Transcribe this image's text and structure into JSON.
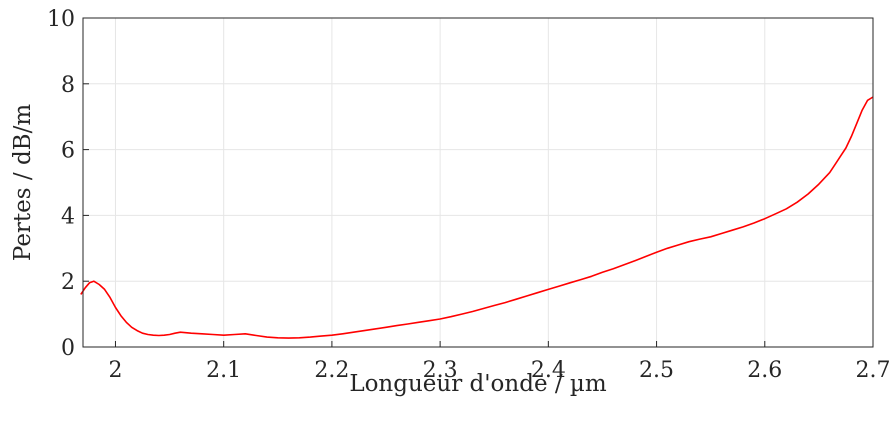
{
  "chart_data": {
    "type": "line",
    "xlabel": "Longueur d'onde / µm",
    "ylabel": "Pertes / dB/m",
    "xlim": [
      1.97,
      2.7
    ],
    "ylim": [
      0,
      10
    ],
    "xticks": [
      {
        "value": 2.0,
        "label": "2"
      },
      {
        "value": 2.1,
        "label": "2.1"
      },
      {
        "value": 2.2,
        "label": "2.2"
      },
      {
        "value": 2.3,
        "label": "2.3"
      },
      {
        "value": 2.4,
        "label": "2.4"
      },
      {
        "value": 2.5,
        "label": "2.5"
      },
      {
        "value": 2.6,
        "label": "2.6"
      },
      {
        "value": 2.7,
        "label": "2.7"
      }
    ],
    "yticks": [
      {
        "value": 0,
        "label": "0"
      },
      {
        "value": 2,
        "label": "2"
      },
      {
        "value": 4,
        "label": "4"
      },
      {
        "value": 6,
        "label": "6"
      },
      {
        "value": 8,
        "label": "8"
      },
      {
        "value": 10,
        "label": "10"
      }
    ],
    "grid": true,
    "line_color": "#ff0000",
    "series": [
      {
        "x": [
          1.968,
          1.972,
          1.976,
          1.98,
          1.985,
          1.99,
          1.995,
          2.0,
          2.005,
          2.01,
          2.015,
          2.02,
          2.025,
          2.03,
          2.035,
          2.04,
          2.045,
          2.05,
          2.055,
          2.06,
          2.07,
          2.08,
          2.09,
          2.1,
          2.11,
          2.12,
          2.13,
          2.14,
          2.15,
          2.16,
          2.17,
          2.18,
          2.19,
          2.2,
          2.21,
          2.22,
          2.23,
          2.24,
          2.25,
          2.26,
          2.27,
          2.28,
          2.29,
          2.3,
          2.31,
          2.32,
          2.33,
          2.34,
          2.35,
          2.36,
          2.37,
          2.38,
          2.39,
          2.4,
          2.41,
          2.42,
          2.43,
          2.44,
          2.45,
          2.46,
          2.47,
          2.48,
          2.49,
          2.5,
          2.51,
          2.52,
          2.53,
          2.54,
          2.55,
          2.56,
          2.57,
          2.58,
          2.59,
          2.6,
          2.61,
          2.62,
          2.63,
          2.64,
          2.65,
          2.66,
          2.665,
          2.67,
          2.675,
          2.68,
          2.685,
          2.69,
          2.695,
          2.7
        ],
        "values": [
          1.6,
          1.8,
          1.95,
          2.0,
          1.9,
          1.75,
          1.5,
          1.2,
          0.95,
          0.75,
          0.6,
          0.5,
          0.42,
          0.38,
          0.36,
          0.35,
          0.36,
          0.38,
          0.42,
          0.45,
          0.42,
          0.4,
          0.38,
          0.36,
          0.38,
          0.4,
          0.35,
          0.3,
          0.28,
          0.27,
          0.28,
          0.3,
          0.33,
          0.36,
          0.4,
          0.45,
          0.5,
          0.55,
          0.6,
          0.65,
          0.7,
          0.75,
          0.8,
          0.85,
          0.92,
          1.0,
          1.08,
          1.17,
          1.26,
          1.35,
          1.45,
          1.55,
          1.65,
          1.75,
          1.85,
          1.95,
          2.05,
          2.15,
          2.27,
          2.38,
          2.5,
          2.62,
          2.75,
          2.88,
          3.0,
          3.1,
          3.2,
          3.28,
          3.35,
          3.45,
          3.55,
          3.65,
          3.77,
          3.9,
          4.05,
          4.2,
          4.4,
          4.65,
          4.95,
          5.3,
          5.55,
          5.8,
          6.05,
          6.4,
          6.8,
          7.2,
          7.5,
          7.6
        ]
      }
    ]
  }
}
